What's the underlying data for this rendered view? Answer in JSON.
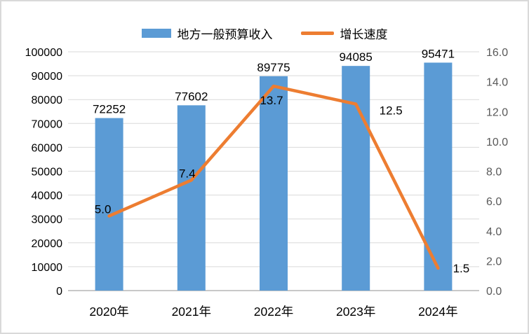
{
  "legend": {
    "series1_label": "地方一般预算收入",
    "series2_label": "增长速度"
  },
  "colors": {
    "bar": "#5b9bd5",
    "line": "#ed7d31",
    "gridline": "#d9d9d9",
    "axis_line": "#c8c8c8",
    "left_tick_text": "#000000",
    "right_tick_text": "#595959",
    "data_label_text": "#000000",
    "background": "#ffffff"
  },
  "chart_data": {
    "type": "bar",
    "title": "",
    "categories": [
      "2020年",
      "2021年",
      "2022年",
      "2023年",
      "2024年"
    ],
    "series": [
      {
        "name": "地方一般预算收入",
        "type": "bar",
        "axis": "left",
        "values": [
          72252,
          77602,
          89775,
          94085,
          95471
        ],
        "data_labels": [
          "72252",
          "77602",
          "89775",
          "94085",
          "95471"
        ]
      },
      {
        "name": "增长速度",
        "type": "line",
        "axis": "right",
        "values": [
          5.0,
          7.4,
          13.7,
          12.5,
          1.5
        ],
        "data_labels": [
          "5.0",
          "7.4",
          "13.7",
          "12.5",
          "1.5"
        ]
      }
    ],
    "left_axis": {
      "min": 0,
      "max": 100000,
      "step": 10000,
      "tick_labels": [
        "0",
        "10000",
        "20000",
        "30000",
        "40000",
        "50000",
        "60000",
        "70000",
        "80000",
        "90000",
        "100000"
      ]
    },
    "right_axis": {
      "min": 0.0,
      "max": 16.0,
      "step": 2.0,
      "tick_labels": [
        "0.0",
        "2.0",
        "4.0",
        "6.0",
        "8.0",
        "10.0",
        "12.0",
        "14.0",
        "16.0"
      ]
    },
    "grid": true,
    "legend_position": "top"
  }
}
